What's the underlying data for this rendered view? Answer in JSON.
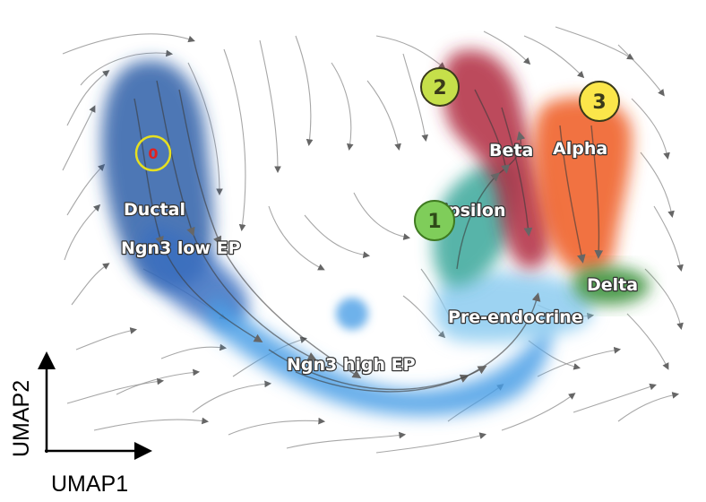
{
  "chart_data": {
    "type": "scatter",
    "subtype": "umap-velocity-stream",
    "xlabel": "UMAP1",
    "ylabel": "UMAP2",
    "grid": false,
    "legend": "none",
    "clusters": [
      {
        "name": "Ductal",
        "color": "#2f5fa8"
      },
      {
        "name": "Ngn3 low EP",
        "color": "#3a6fc0"
      },
      {
        "name": "Ngn3 high EP",
        "color": "#4a9fe6"
      },
      {
        "name": "Pre-endocrine",
        "color": "#8ccbf0"
      },
      {
        "name": "Epsilon",
        "color": "#3aa79a"
      },
      {
        "name": "Beta",
        "color": "#b0283e"
      },
      {
        "name": "Alpha",
        "color": "#ef5a1c"
      },
      {
        "name": "Delta",
        "color": "#2e8a2e"
      }
    ],
    "markers": [
      {
        "label": "0",
        "fill": "none",
        "ring": "#e6e020",
        "text_color": "#e02020"
      },
      {
        "label": "1",
        "fill": "#7fcd5a",
        "ring": "#3f7a20",
        "text_color": "#2e4a18"
      },
      {
        "label": "2",
        "fill": "#c6e04a",
        "ring": "#3a3a1a",
        "text_color": "#3a3a1a"
      },
      {
        "label": "3",
        "fill": "#fbe64a",
        "ring": "#3a3a1a",
        "text_color": "#3a3a1a"
      }
    ]
  }
}
